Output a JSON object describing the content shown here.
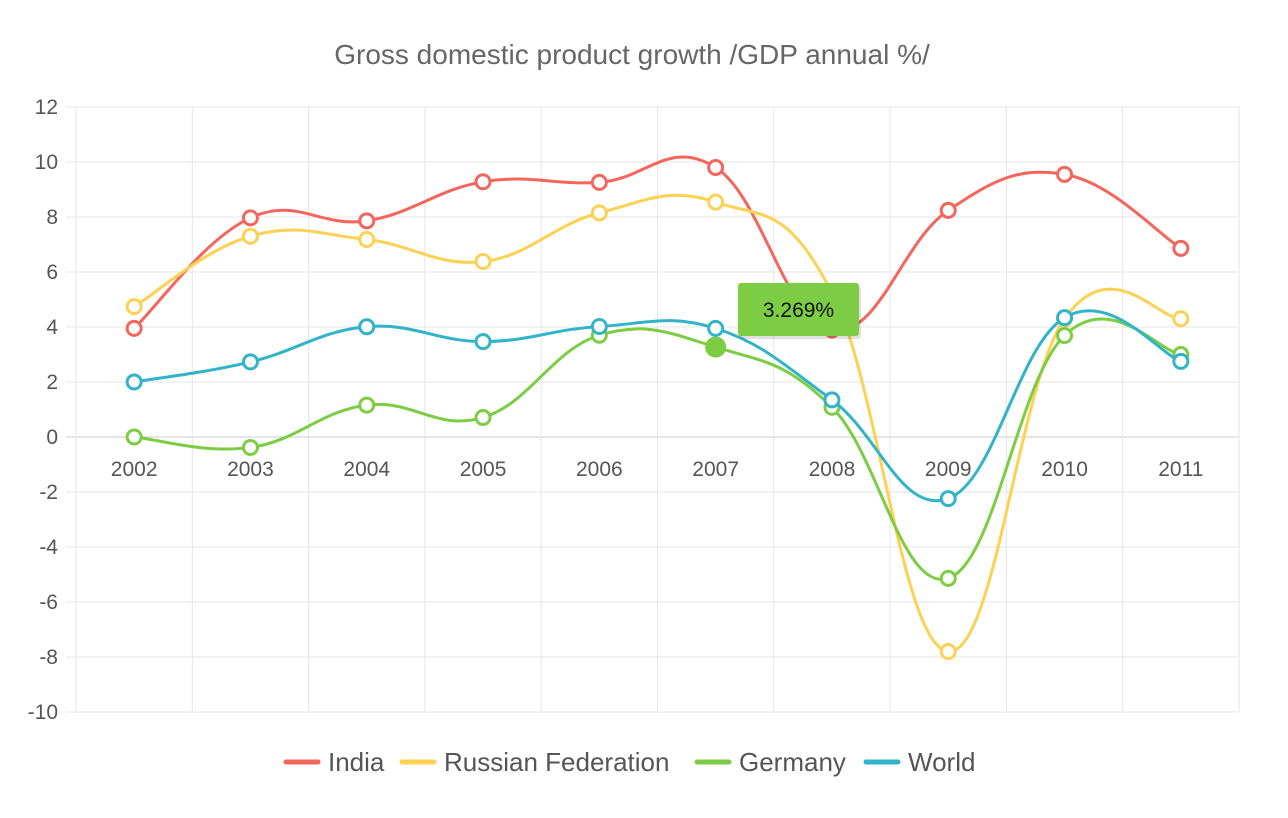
{
  "chart_data": {
    "type": "line",
    "title": "Gross domestic product growth /GDP annual %/",
    "categories": [
      "2002",
      "2003",
      "2004",
      "2005",
      "2006",
      "2007",
      "2008",
      "2009",
      "2010",
      "2011"
    ],
    "ylim": [
      -10,
      12
    ],
    "yticks": [
      12,
      10,
      8,
      6,
      4,
      2,
      0,
      -2,
      -4,
      -6,
      -8,
      -10
    ],
    "grid": true,
    "legend_position": "bottom",
    "series": [
      {
        "name": "India",
        "color": "#f5655c",
        "values": [
          3.95,
          7.97,
          7.86,
          9.28,
          9.26,
          9.8,
          3.89,
          8.24,
          9.55,
          6.86
        ]
      },
      {
        "name": "Russian Federation",
        "color": "#fdd153",
        "values": [
          4.74,
          7.3,
          7.18,
          6.38,
          8.15,
          8.54,
          5.25,
          -7.8,
          4.3,
          4.3
        ]
      },
      {
        "name": "Germany",
        "color": "#7ccd43",
        "values": [
          0.0,
          -0.38,
          1.16,
          0.71,
          3.7,
          3.269,
          1.08,
          -5.14,
          3.69,
          3.0
        ]
      },
      {
        "name": "World",
        "color": "#31b3c9",
        "values": [
          2.0,
          2.73,
          4.01,
          3.47,
          4.02,
          3.95,
          1.35,
          -2.24,
          4.34,
          2.75
        ]
      }
    ],
    "tooltip": {
      "series": "Germany",
      "category": "2007",
      "text": "3.269%"
    }
  }
}
